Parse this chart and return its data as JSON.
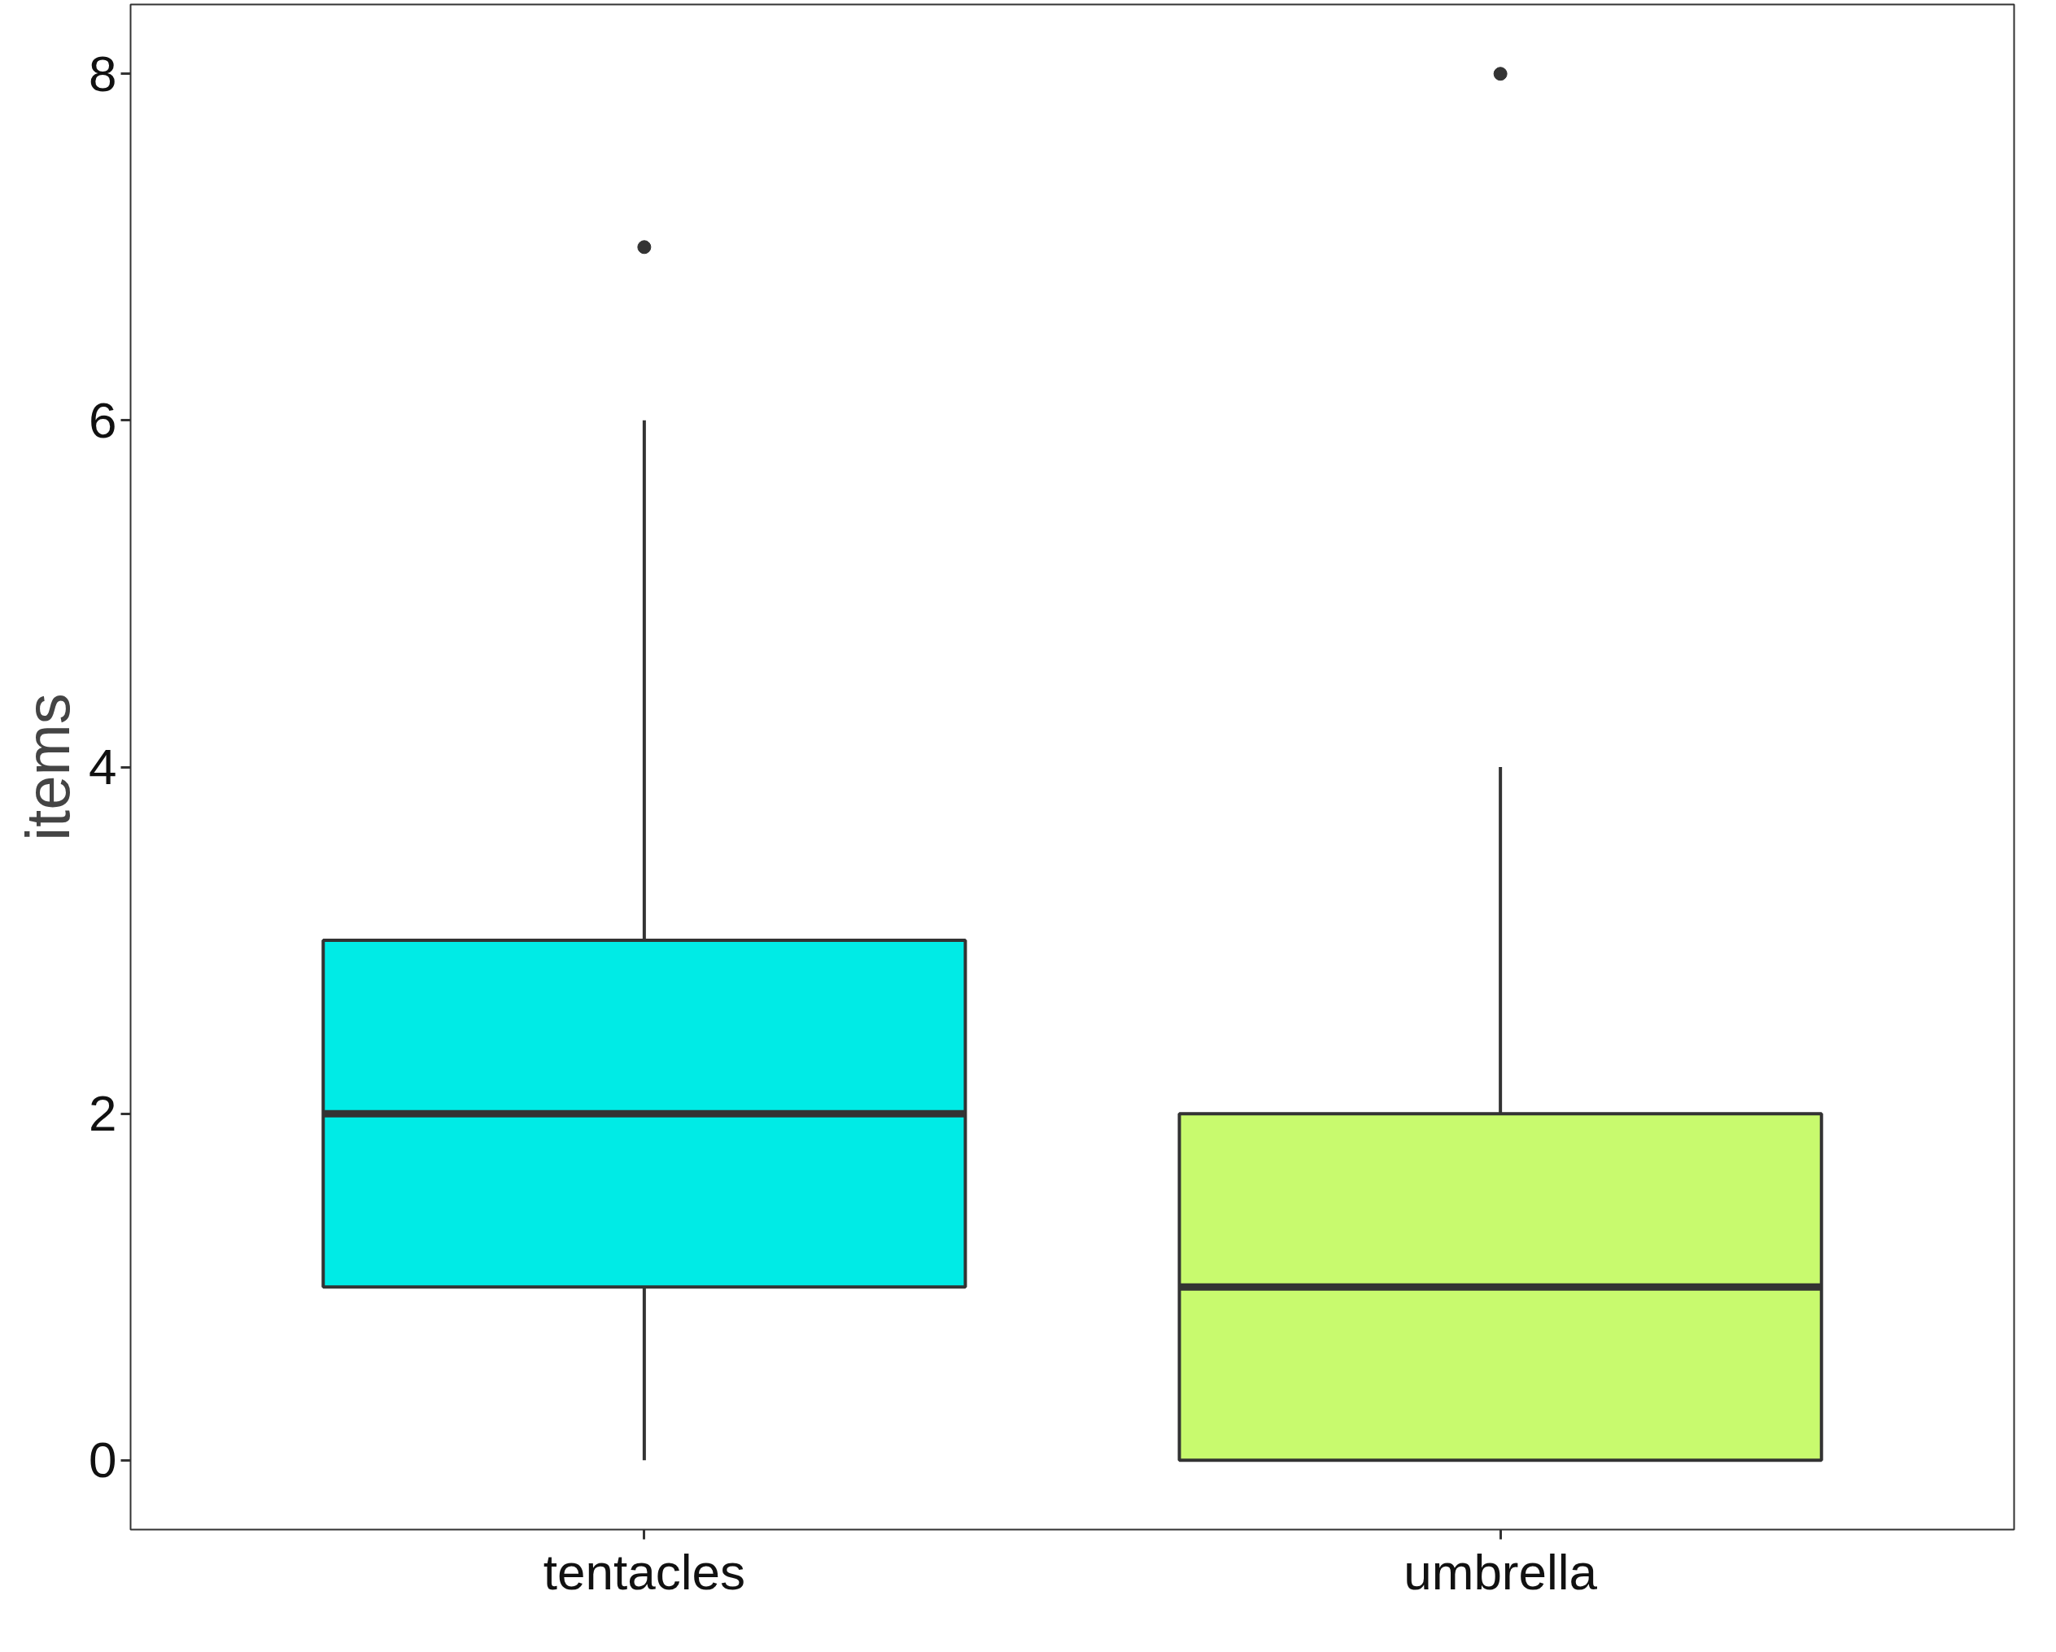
{
  "chart_data": {
    "type": "box",
    "ylabel": "items",
    "categories": [
      "tentacles",
      "umbrella"
    ],
    "boxes": [
      {
        "low": 0,
        "q1": 1,
        "median": 2,
        "q3": 3,
        "high": 6,
        "outliers": [
          7
        ]
      },
      {
        "low": 0,
        "q1": 0,
        "median": 1,
        "q3": 2,
        "high": 4,
        "outliers": [
          8
        ]
      }
    ],
    "colors": [
      "#00ebe6",
      "#c8fa6e"
    ],
    "ylim": [
      -0.4,
      8.4
    ],
    "yticks": [
      0,
      2,
      4,
      6,
      8
    ],
    "grid": false
  }
}
